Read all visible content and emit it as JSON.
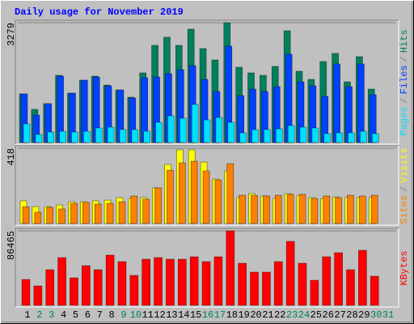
{
  "chart_data": [
    {
      "type": "bar",
      "title": "Daily usage for November 2019",
      "ylim": [
        0,
        3279
      ],
      "yticks": [
        3279
      ],
      "legend_separator": "/",
      "series": [
        {
          "name": "Hits",
          "color": "#00805c",
          "values": [
            1330,
            909,
            1064,
            1839,
            1352,
            1706,
            1817,
            1573,
            1440,
            1241,
            1906,
            2659,
            2881,
            2659,
            3102,
            2571,
            2260,
            3279,
            2061,
            1906,
            1839,
            2083,
            3058,
            1950,
            1728,
            2216,
            2438,
            1662,
            2349,
            1463,
            null
          ]
        },
        {
          "name": "Files",
          "color": "#0040ff",
          "values": [
            1330,
            753,
            1064,
            1817,
            1352,
            1706,
            1795,
            1551,
            1440,
            1219,
            1773,
            1795,
            1884,
            1994,
            2105,
            1728,
            1396,
            2637,
            1285,
            1463,
            1396,
            1529,
            2415,
            1662,
            1551,
            1263,
            2149,
            1529,
            2149,
            1307,
            null
          ]
        },
        {
          "name": "Pages",
          "color": "#00e0ff",
          "values": [
            510,
            222,
            288,
            310,
            288,
            310,
            399,
            421,
            355,
            355,
            310,
            554,
            731,
            665,
            1042,
            620,
            687,
            554,
            266,
            355,
            355,
            377,
            465,
            421,
            399,
            244,
            266,
            266,
            310,
            244,
            null
          ]
        }
      ]
    },
    {
      "type": "bar",
      "ylim": [
        0,
        418
      ],
      "yticks": [
        418
      ],
      "legend_separator": "/",
      "series": [
        {
          "name": "Visits",
          "color": "#ffff00",
          "values": [
            126,
            94,
            94,
            103,
            121,
            121,
            126,
            130,
            144,
            139,
            144,
            198,
            328,
            409,
            409,
            341,
            247,
            292,
            144,
            166,
            153,
            139,
            166,
            157,
            144,
            139,
            148,
            144,
            144,
            144,
            null
          ]
        },
        {
          "name": "Sites",
          "color": "#ff8000",
          "values": [
            94,
            63,
            90,
            81,
            112,
            117,
            108,
            112,
            121,
            153,
            135,
            198,
            296,
            337,
            346,
            292,
            242,
            332,
            157,
            157,
            153,
            157,
            162,
            162,
            139,
            153,
            144,
            157,
            153,
            157,
            null
          ]
        }
      ]
    },
    {
      "type": "bar",
      "ylim": [
        0,
        86465
      ],
      "yticks": [
        86465
      ],
      "categories": [
        "1",
        "2",
        "3",
        "4",
        "5",
        "6",
        "7",
        "8",
        "9",
        "10",
        "11",
        "12",
        "13",
        "14",
        "15",
        "16",
        "17",
        "18",
        "19",
        "20",
        "21",
        "22",
        "23",
        "24",
        "25",
        "26",
        "27",
        "28",
        "29",
        "30",
        "31"
      ],
      "category_colors": [
        "#000000",
        "#00805c",
        "#00805c",
        "#000000",
        "#000000",
        "#000000",
        "#000000",
        "#000000",
        "#00805c",
        "#00805c",
        "#000000",
        "#000000",
        "#000000",
        "#000000",
        "#000000",
        "#00805c",
        "#00805c",
        "#000000",
        "#000000",
        "#000000",
        "#000000",
        "#000000",
        "#00805c",
        "#00805c",
        "#000000",
        "#000000",
        "#000000",
        "#000000",
        "#000000",
        "#00805c",
        "#00805c"
      ],
      "series": [
        {
          "name": "KBytes",
          "color": "#ff0000",
          "values": [
            30080,
            22560,
            41360,
            55460,
            31960,
            46060,
            41360,
            58280,
            50760,
            34780,
            53580,
            55460,
            53580,
            53580,
            56400,
            50760,
            56400,
            86465,
            48880,
            38540,
            38540,
            50760,
            74260,
            48880,
            29140,
            56400,
            61100,
            41360,
            63920,
            33840,
            null
          ]
        }
      ]
    }
  ]
}
